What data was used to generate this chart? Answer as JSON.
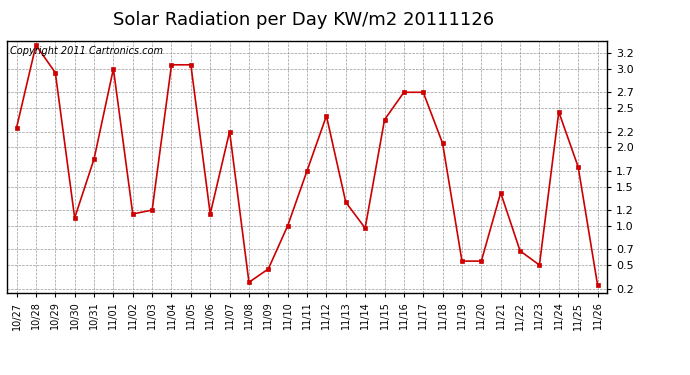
{
  "title": "Solar Radiation per Day KW/m2 20111126",
  "copyright_text": "Copyright 2011 Cartronics.com",
  "labels": [
    "10/27",
    "10/28",
    "10/29",
    "10/30",
    "10/31",
    "11/01",
    "11/02",
    "11/03",
    "11/04",
    "11/05",
    "11/06",
    "11/07",
    "11/08",
    "11/09",
    "11/10",
    "11/11",
    "11/12",
    "11/13",
    "11/14",
    "11/15",
    "11/16",
    "11/17",
    "11/18",
    "11/19",
    "11/20",
    "11/21",
    "11/22",
    "11/23",
    "11/24",
    "11/25",
    "11/26"
  ],
  "values": [
    2.25,
    3.3,
    2.95,
    1.1,
    1.85,
    3.0,
    1.15,
    1.2,
    3.05,
    3.05,
    1.15,
    2.2,
    0.28,
    0.45,
    1.0,
    1.7,
    2.4,
    1.3,
    0.97,
    2.35,
    2.7,
    2.7,
    2.05,
    0.55,
    0.55,
    1.42,
    0.68,
    0.5,
    2.45,
    1.75,
    0.25
  ],
  "line_color": "#cc0000",
  "marker_color": "#cc0000",
  "bg_color": "#ffffff",
  "plot_bg_color": "#ffffff",
  "grid_color": "#999999",
  "ylim": [
    0.15,
    3.35
  ],
  "yticks": [
    0.2,
    0.5,
    0.7,
    1.0,
    1.2,
    1.5,
    1.7,
    2.0,
    2.2,
    2.5,
    2.7,
    3.0,
    3.2
  ],
  "title_fontsize": 13,
  "copyright_fontsize": 7,
  "tick_fontsize": 8,
  "xlabel_fontsize": 7
}
